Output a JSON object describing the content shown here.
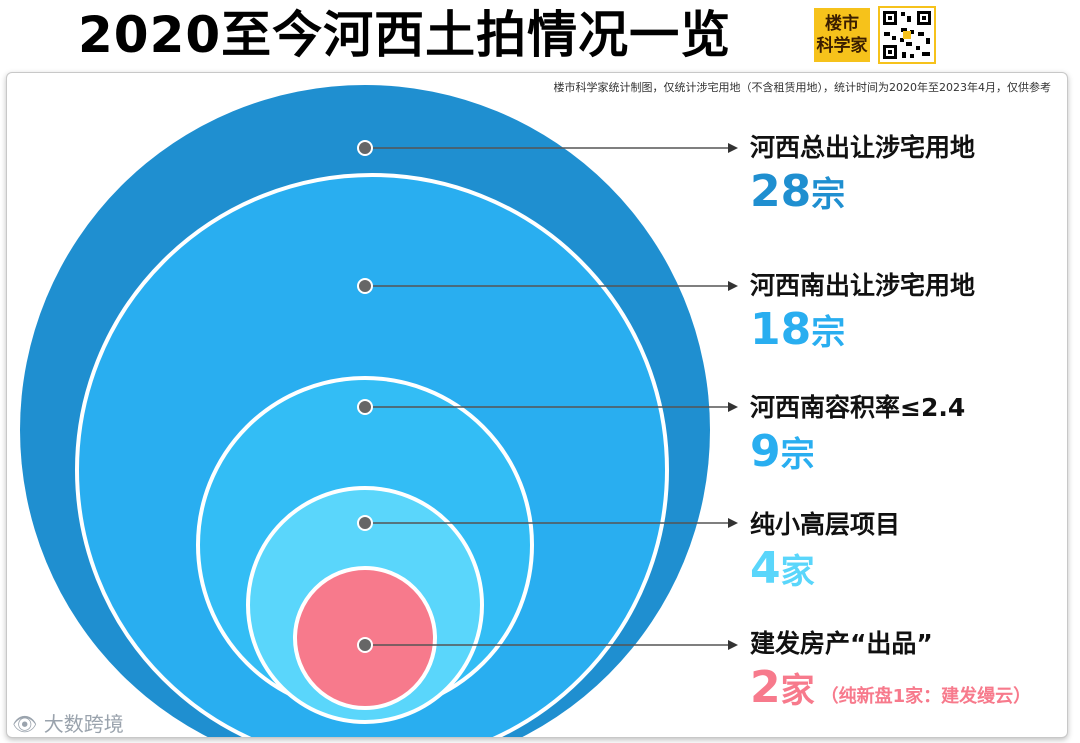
{
  "header": {
    "title": "2020至今河西土拍情况一览",
    "logo_line1": "楼市",
    "logo_line2": "科学家"
  },
  "note": "楼市科学家统计制图，仅统计涉宅用地（不含租赁用地），统计时间为2020年至2023年4月，仅供参考",
  "watermark": "大数跨境",
  "chart_data": {
    "type": "nested-circle",
    "title": "2020至今河西土拍情况一览",
    "items": [
      {
        "label": "河西总出让涉宅用地",
        "value": 28,
        "unit": "宗",
        "color": "#1f8fd0",
        "extra": ""
      },
      {
        "label": "河西南出让涉宅用地",
        "value": 18,
        "unit": "宗",
        "color": "#29aef0",
        "extra": ""
      },
      {
        "label": "河西南容积率≤2.4",
        "value": 9,
        "unit": "宗",
        "color": "#33bdf5",
        "extra": ""
      },
      {
        "label": "纯小高层项目",
        "value": 4,
        "unit": "家",
        "color": "#5ad6fb",
        "extra": ""
      },
      {
        "label": "建发房产“出品”",
        "value": 2,
        "unit": "家",
        "color": "#f77a8c",
        "extra": "（纯新盘1家：建发缦云）"
      }
    ]
  }
}
